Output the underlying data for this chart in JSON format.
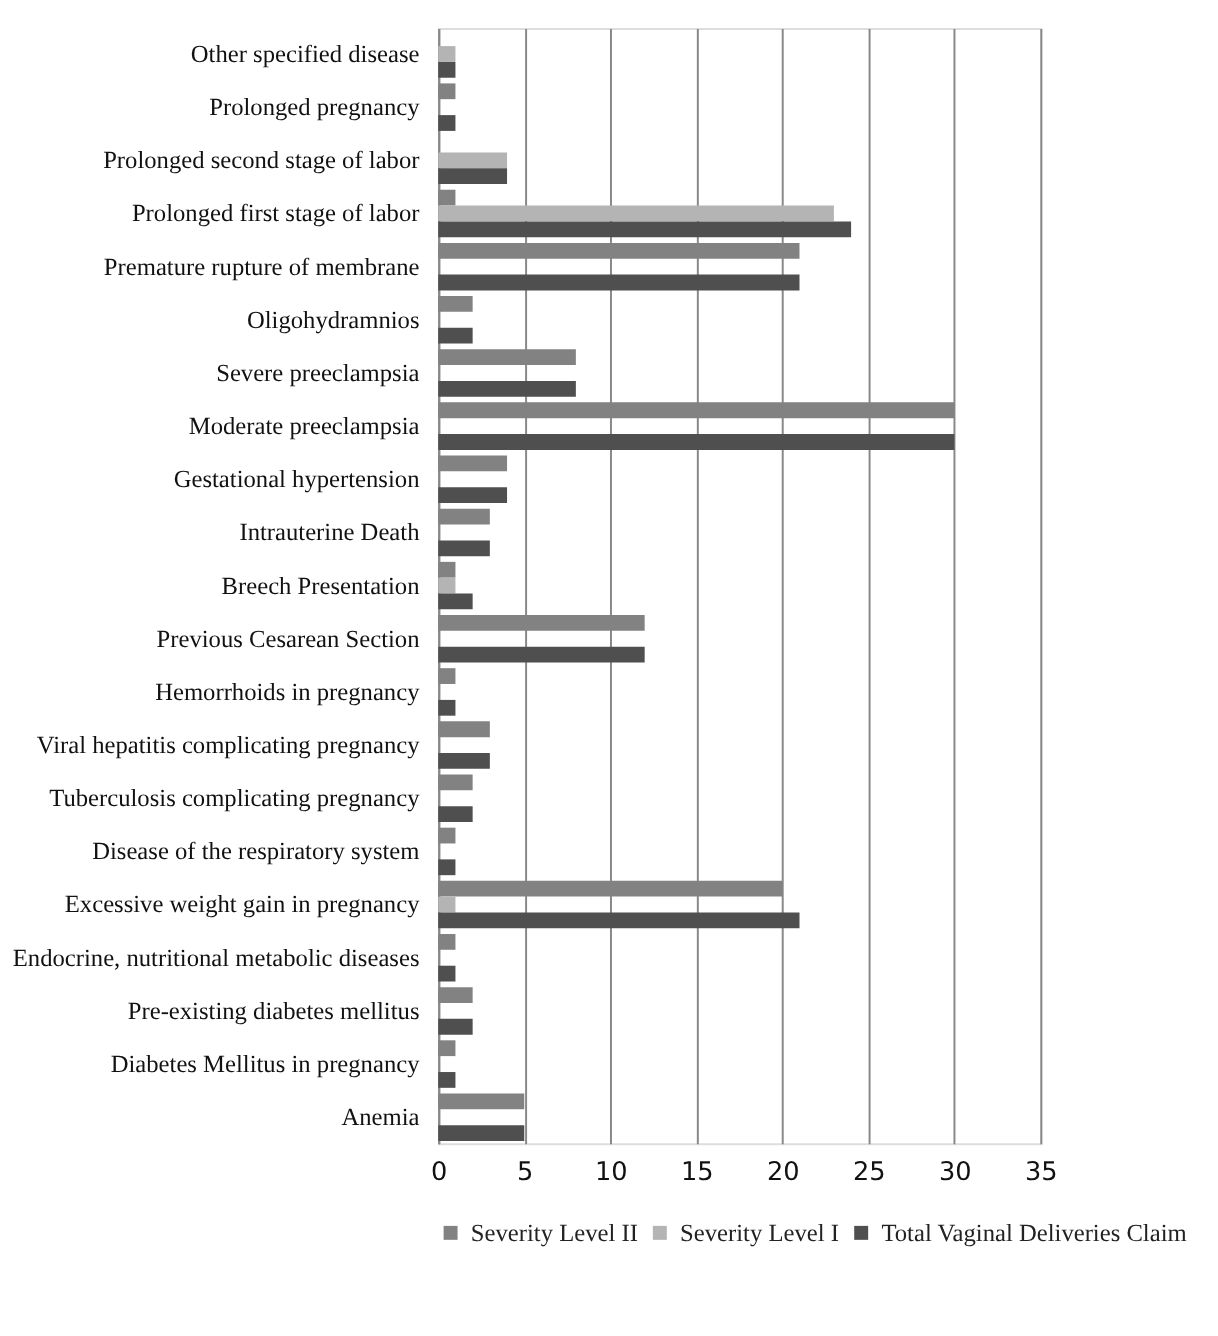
{
  "chart_data": {
    "type": "bar",
    "orientation": "horizontal",
    "categories": [
      "Other specified disease",
      "Prolonged pregnancy",
      "Prolonged second stage of labor",
      "Prolonged first stage of labor",
      "Premature rupture of membrane",
      "Oligohydramnios",
      "Severe preeclampsia",
      "Moderate preeclampsia",
      "Gestational hypertension",
      "Intrauterine Death",
      "Breech Presentation",
      "Previous Cesarean Section",
      "Hemorrhoids in pregnancy",
      "Viral hepatitis complicating pregnancy",
      "Tuberculosis complicating pregnancy",
      "Disease of the respiratory system",
      "Excessive weight gain in pregnancy",
      "Endocrine, nutritional metabolic diseases",
      "Pre-existing diabetes mellitus",
      "Diabetes Mellitus in pregnancy",
      "Anemia"
    ],
    "series": [
      {
        "name": "Severity Level II",
        "color": "#828282",
        "values": [
          0,
          1,
          0,
          1,
          21,
          2,
          8,
          30,
          4,
          3,
          1,
          12,
          1,
          3,
          2,
          1,
          20,
          1,
          2,
          1,
          5
        ]
      },
      {
        "name": "Severity Level I",
        "color": "#b4b4b4",
        "values": [
          1,
          0,
          4,
          23,
          0,
          0,
          0,
          0,
          0,
          0,
          1,
          0,
          0,
          0,
          0,
          0,
          1,
          0,
          0,
          0,
          0
        ]
      },
      {
        "name": "Total Vaginal Deliveries Claim",
        "color": "#4f4f4f",
        "values": [
          1,
          1,
          4,
          24,
          21,
          2,
          8,
          30,
          4,
          3,
          2,
          12,
          1,
          3,
          2,
          1,
          21,
          1,
          2,
          1,
          5
        ]
      }
    ],
    "xlim": [
      0,
      35
    ],
    "xticks": [
      0,
      5,
      10,
      15,
      20,
      25,
      30,
      35
    ],
    "grid": "x",
    "legend": "bottom"
  }
}
